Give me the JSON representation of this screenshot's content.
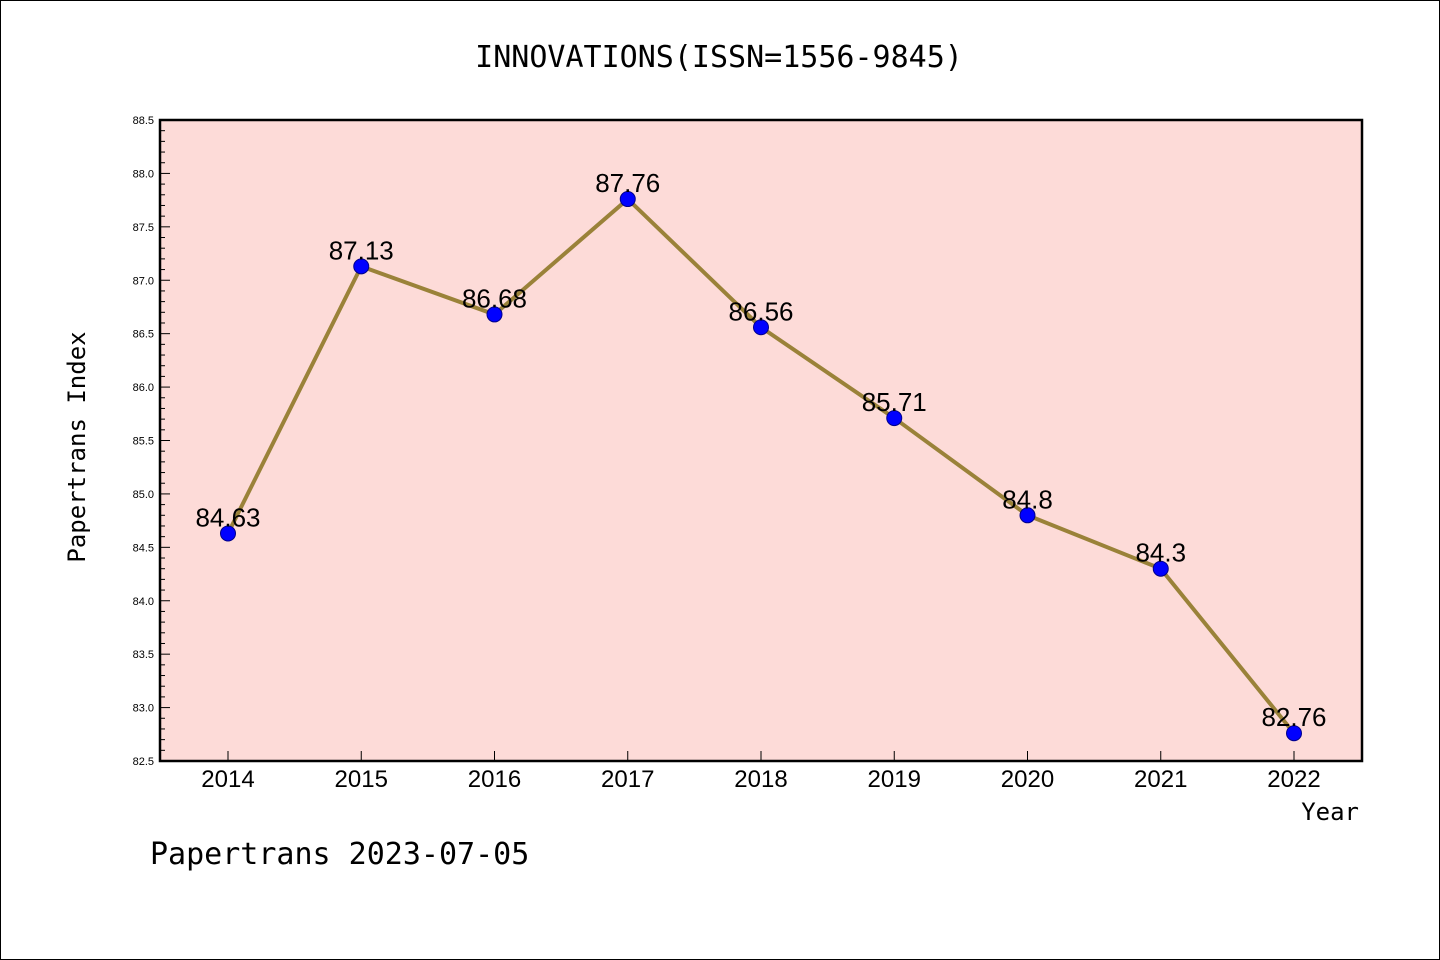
{
  "chart_data": {
    "type": "line",
    "title": "INNOVATIONS(ISSN=1556-9845)",
    "xlabel": "Year",
    "ylabel": "Papertrans Index",
    "x": [
      "2014",
      "2015",
      "2016",
      "2017",
      "2018",
      "2019",
      "2020",
      "2021",
      "2022"
    ],
    "values": [
      84.63,
      87.13,
      86.68,
      87.76,
      86.56,
      85.71,
      84.8,
      84.3,
      82.76
    ],
    "data_labels": [
      "84.63",
      "87.13",
      "86.68",
      "87.76",
      "86.56",
      "85.71",
      "84.8",
      "84.3",
      "82.76"
    ],
    "ylim": [
      82.5,
      88.5
    ],
    "yticks": [
      "82.5",
      "83.0",
      "83.5",
      "84.0",
      "84.5",
      "85.0",
      "85.5",
      "86.0",
      "86.5",
      "87.0",
      "87.5",
      "88.0",
      "88.5"
    ],
    "grid": false,
    "colors": {
      "plot_background": "#fddbd8",
      "line": "#9a8239",
      "marker": "#0000ff",
      "marker_edge": "#00008b"
    }
  },
  "footer": "Papertrans 2023-07-05"
}
